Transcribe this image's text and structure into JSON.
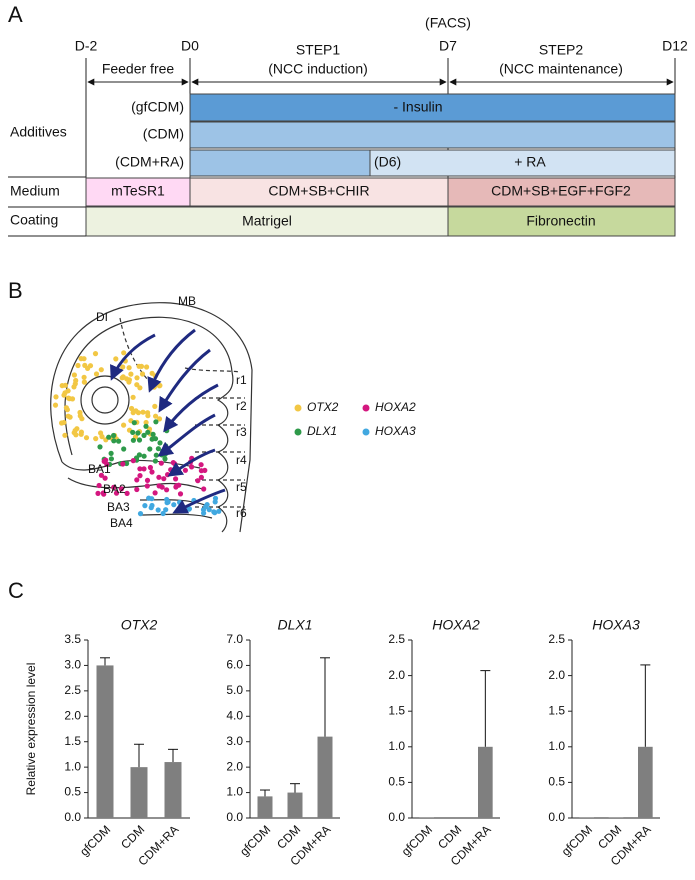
{
  "panel_labels": [
    "A",
    "B",
    "C"
  ],
  "timeline": {
    "day_labels": [
      "D-2",
      "D0",
      "D7",
      "D12"
    ],
    "facs": "(FACS)",
    "feeder": "Feeder free",
    "steps": [
      {
        "title": "STEP1",
        "subtitle": "(NCC induction)"
      },
      {
        "title": "STEP2",
        "subtitle": "(NCC maintenance)"
      }
    ],
    "additives_label": "Additives",
    "conditions": [
      "(gfCDM)",
      "(CDM)",
      "(CDM+RA)"
    ],
    "insulin": "- Insulin",
    "d6": "(D6)",
    "ra": "+ RA",
    "medium_label": "Medium",
    "media": [
      "mTeSR1",
      "CDM+SB+CHIR",
      "CDM+SB+EGF+FGF2"
    ],
    "coating_label": "Coating",
    "coatings": [
      "Matrigel",
      "Fibronectin"
    ]
  },
  "embryo": {
    "regions": [
      "DI",
      "MB"
    ],
    "rhombomeres": [
      "r1",
      "r2",
      "r3",
      "r4",
      "r5",
      "r6"
    ],
    "arches": [
      "BA1",
      "BA2",
      "BA3",
      "BA4"
    ],
    "legend": [
      {
        "name": "OTX2",
        "color": "#f2c744"
      },
      {
        "name": "HOXA2",
        "color": "#d4177f"
      },
      {
        "name": "DLX1",
        "color": "#2e9a4a"
      },
      {
        "name": "HOXA3",
        "color": "#41a8e0"
      }
    ]
  },
  "chart_data": [
    {
      "type": "bar",
      "title": "OTX2",
      "ylabel": "Relative expression level",
      "categories": [
        "gfCDM",
        "CDM",
        "CDM+RA"
      ],
      "values": [
        3.0,
        1.0,
        1.1
      ],
      "errors": [
        0.15,
        0.45,
        0.25
      ],
      "color": "#7f7f7f",
      "ylim": [
        0,
        3.5
      ],
      "yticks": [
        {
          "value": 0,
          "label": "0.0"
        },
        0.5,
        {
          "value": 1,
          "label": "1.0"
        },
        1.5,
        {
          "value": 2,
          "label": "2.0"
        },
        2.5,
        {
          "value": 3,
          "label": "3.0"
        },
        3.5
      ]
    },
    {
      "type": "bar",
      "title": "DLX1",
      "categories": [
        "gfCDM",
        "CDM",
        "CDM+RA"
      ],
      "values": [
        0.85,
        1.0,
        3.2
      ],
      "errors": [
        0.25,
        0.35,
        3.1
      ],
      "color": "#7f7f7f",
      "ylim": [
        0,
        7
      ],
      "yticks": [
        {
          "value": 0,
          "label": "0.0"
        },
        {
          "value": 1,
          "label": "1.0"
        },
        {
          "value": 2,
          "label": "2.0"
        },
        {
          "value": 3,
          "label": "3.0"
        },
        {
          "value": 4,
          "label": "4.0"
        },
        {
          "value": 5,
          "label": "5.0"
        },
        {
          "value": 6,
          "label": "6.0"
        },
        {
          "value": 7,
          "label": "7.0"
        }
      ]
    },
    {
      "type": "bar",
      "title": "HOXA2",
      "categories": [
        "gfCDM",
        "CDM",
        "CDM+RA"
      ],
      "values": [
        0.01,
        0,
        1.0
      ],
      "errors": [
        0,
        0,
        1.07
      ],
      "color": "#7f7f7f",
      "ylim": [
        0,
        2.5
      ],
      "yticks": [
        {
          "value": 0,
          "label": "0.0"
        },
        0.5,
        {
          "value": 1,
          "label": "1.0"
        },
        1.5,
        {
          "value": 2,
          "label": "2.0"
        },
        2.5
      ]
    },
    {
      "type": "bar",
      "title": "HOXA3",
      "categories": [
        "gfCDM",
        "CDM",
        "CDM+RA"
      ],
      "values": [
        0.01,
        0.01,
        1.0
      ],
      "errors": [
        0,
        0,
        1.15
      ],
      "color": "#7f7f7f",
      "ylim": [
        0,
        2.5
      ],
      "yticks": [
        {
          "value": 0,
          "label": "0.0"
        },
        0.5,
        {
          "value": 1,
          "label": "1.0"
        },
        1.5,
        {
          "value": 2,
          "label": "2.0"
        },
        2.5
      ]
    }
  ]
}
